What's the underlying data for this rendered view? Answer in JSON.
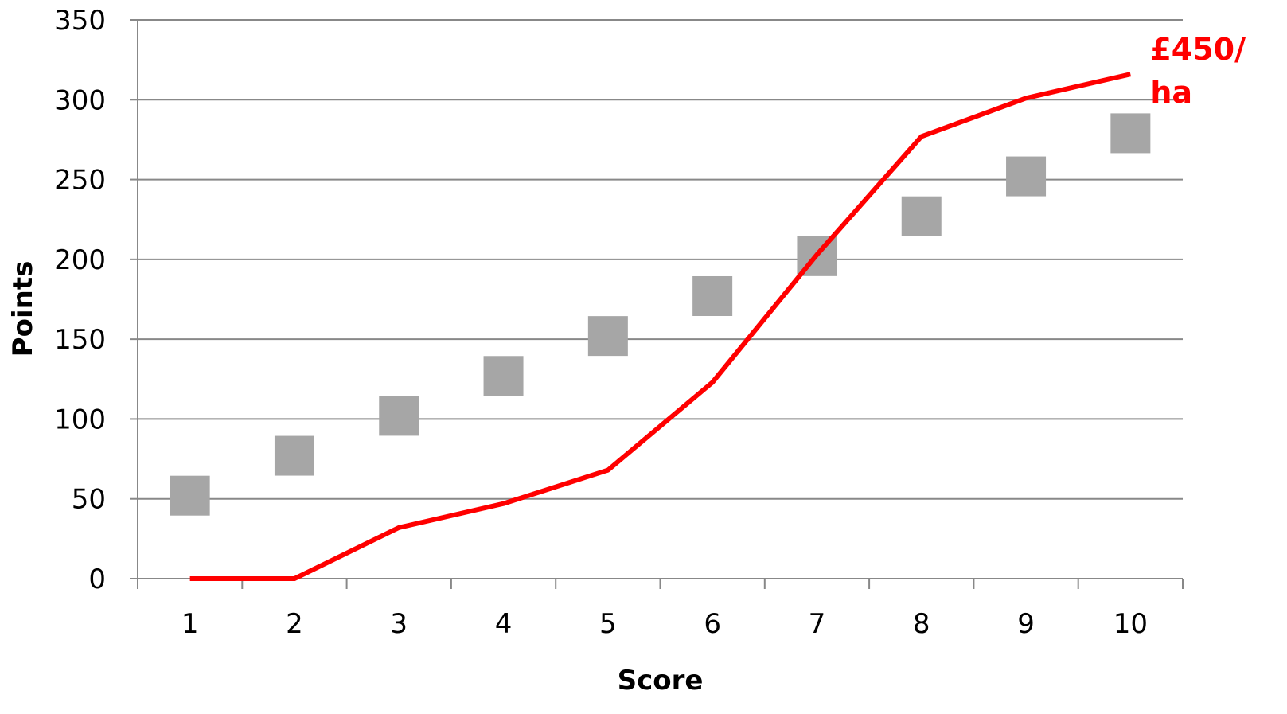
{
  "chart_data": {
    "type": "line",
    "title": "",
    "xlabel": "Score",
    "ylabel": "Points",
    "categories": [
      "1",
      "2",
      "3",
      "4",
      "5",
      "6",
      "7",
      "8",
      "9",
      "10"
    ],
    "ylim": [
      0,
      350
    ],
    "yticks": [
      "0",
      "50",
      "100",
      "150",
      "200",
      "250",
      "300",
      "350"
    ],
    "grid": true,
    "legend": "none",
    "series": [
      {
        "kind": "scatter",
        "marker": "square",
        "color": "#a6a6a6",
        "values": [
          52,
          77,
          102,
          127,
          152,
          177,
          202,
          227,
          252,
          279
        ]
      },
      {
        "kind": "line",
        "color": "#ff0000",
        "values": [
          0,
          0,
          32,
          47,
          68,
          123,
          203,
          277,
          301,
          316
        ]
      }
    ],
    "annotations": [
      {
        "text_lines": [
          "£450/",
          "ha"
        ],
        "color": "#ff0000",
        "anchor_category": "10",
        "anchor_value": 316
      }
    ]
  },
  "colors": {
    "grid": "#888888",
    "axis": "#888888",
    "text": "#000000"
  }
}
